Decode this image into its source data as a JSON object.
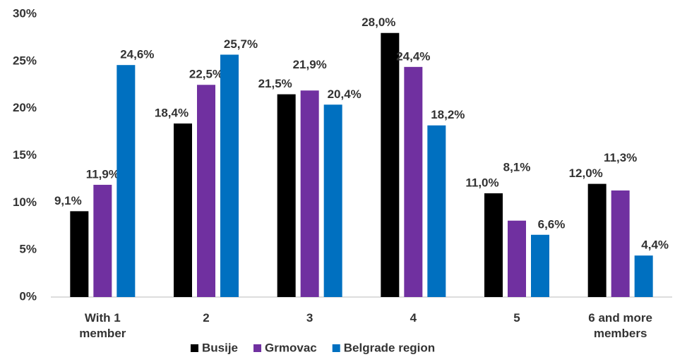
{
  "chart_data": {
    "type": "bar",
    "categories": [
      "With 1 member",
      "2",
      "3",
      "4",
      "5",
      "6 and more members"
    ],
    "series": [
      {
        "name": "Busije",
        "color": "#000000",
        "values": [
          9.1,
          18.4,
          21.5,
          28.0,
          11.0,
          12.0
        ],
        "value_labels": [
          "9,1%",
          "18,4%",
          "21,5%",
          "28,0%",
          "11,0%",
          "12,0%"
        ]
      },
      {
        "name": "Grmovac",
        "color": "#7030a0",
        "values": [
          11.9,
          22.5,
          21.9,
          24.4,
          8.1,
          11.3
        ],
        "value_labels": [
          "11,9%",
          "22,5%",
          "21,9%",
          "24,4%",
          "8,1%",
          "11,3%"
        ]
      },
      {
        "name": "Belgrade region",
        "color": "#0070c0",
        "values": [
          24.6,
          25.7,
          20.4,
          18.2,
          6.6,
          4.4
        ],
        "value_labels": [
          "24,6%",
          "25,7%",
          "20,4%",
          "18,2%",
          "6,6%",
          "4,4%"
        ]
      }
    ],
    "ylim": [
      0,
      30
    ],
    "yticks": [
      {
        "value": 0,
        "label": "0%"
      },
      {
        "value": 5,
        "label": "5%"
      },
      {
        "value": 10,
        "label": "10%"
      },
      {
        "value": 15,
        "label": "15%"
      },
      {
        "value": 20,
        "label": "20%"
      },
      {
        "value": 25,
        "label": "25%"
      },
      {
        "value": 30,
        "label": "30%"
      }
    ],
    "grid": false,
    "legend": "bottom"
  }
}
